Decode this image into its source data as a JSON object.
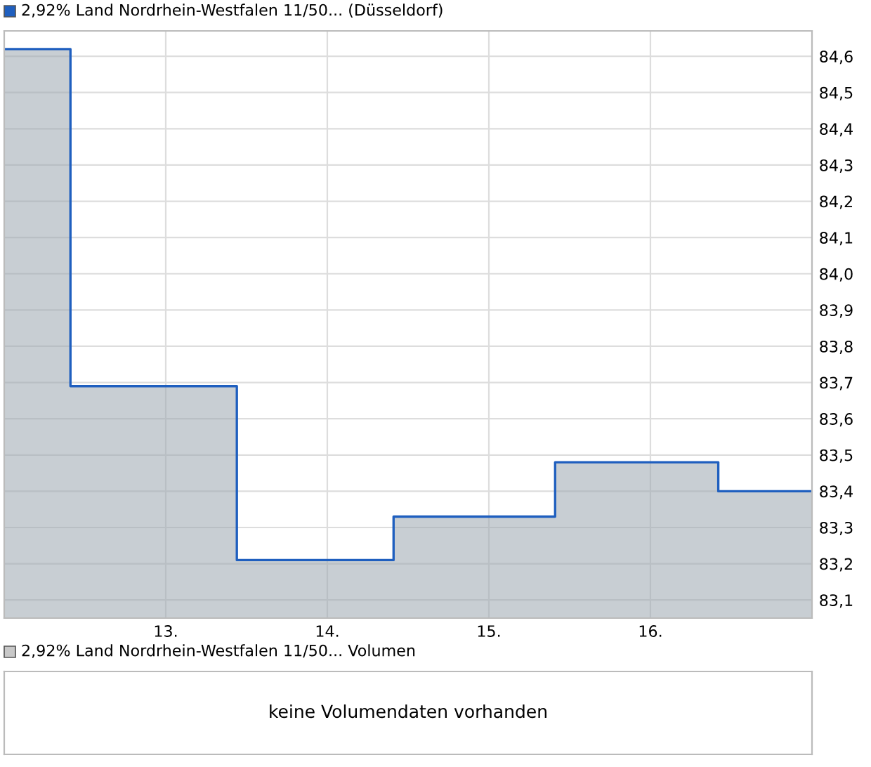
{
  "chart_data": [
    {
      "type": "area",
      "x": [
        12.0,
        12.41,
        12.41,
        13.44,
        13.44,
        14.41,
        14.41,
        15.41,
        15.41,
        16.42,
        16.42,
        17.0
      ],
      "series": [
        {
          "name": "2,92% Land Nordrhein-Westfalen 11/50... (Düsseldorf)",
          "color": "#1f5fbf",
          "values": [
            84.62,
            84.62,
            83.69,
            83.69,
            83.21,
            83.21,
            83.33,
            83.33,
            83.48,
            83.48,
            83.4,
            83.4
          ]
        }
      ],
      "xlim": [
        12.0,
        17.0
      ],
      "xticks": [
        {
          "value": 13,
          "label": "13."
        },
        {
          "value": 14,
          "label": "14."
        },
        {
          "value": 15,
          "label": "15."
        },
        {
          "value": 16,
          "label": "16."
        }
      ],
      "ylim": [
        83.05,
        84.67
      ],
      "yticks": [
        {
          "value": 83.1,
          "label": "83,1"
        },
        {
          "value": 83.2,
          "label": "83,2"
        },
        {
          "value": 83.3,
          "label": "83,3"
        },
        {
          "value": 83.4,
          "label": "83,4"
        },
        {
          "value": 83.5,
          "label": "83,5"
        },
        {
          "value": 83.6,
          "label": "83,6"
        },
        {
          "value": 83.7,
          "label": "83,7"
        },
        {
          "value": 83.8,
          "label": "83,8"
        },
        {
          "value": 83.9,
          "label": "83,9"
        },
        {
          "value": 84.0,
          "label": "84,0"
        },
        {
          "value": 84.1,
          "label": "84,1"
        },
        {
          "value": 84.2,
          "label": "84,2"
        },
        {
          "value": 84.3,
          "label": "84,3"
        },
        {
          "value": 84.4,
          "label": "84,4"
        },
        {
          "value": 84.5,
          "label": "84,5"
        },
        {
          "value": 84.6,
          "label": "84,6"
        }
      ],
      "grid": true,
      "legend": "top left"
    },
    {
      "type": "other",
      "series": [
        {
          "name": "2,92% Land Nordrhein-Westfalen 11/50... Volumen",
          "color": "#c8c8c8"
        }
      ],
      "annotations": [
        "keine Volumendaten vorhanden"
      ],
      "legend": "top left"
    }
  ]
}
